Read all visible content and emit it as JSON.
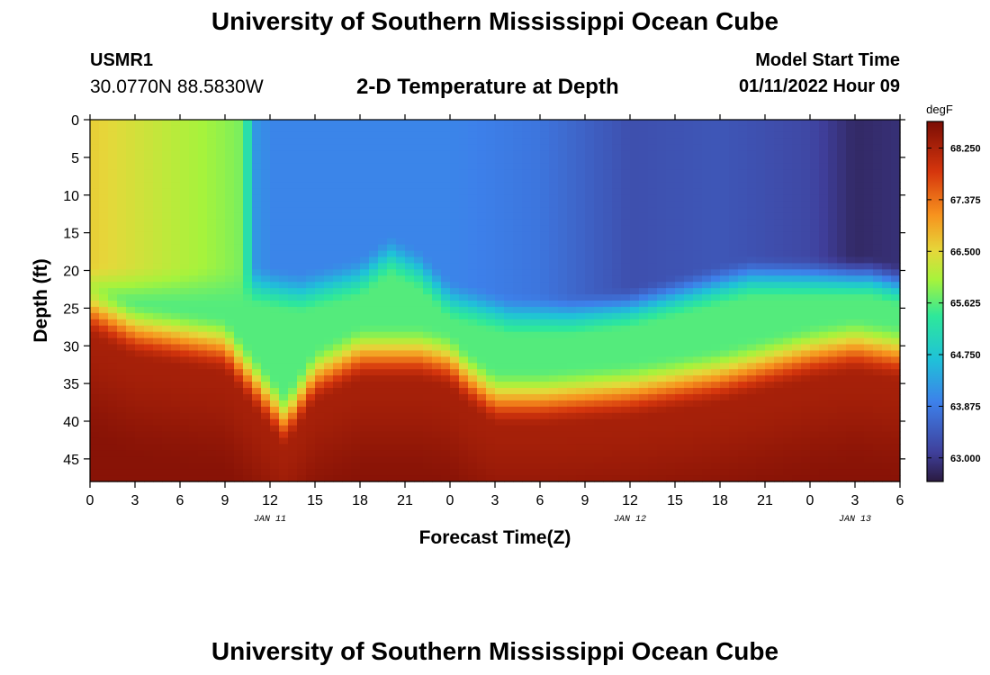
{
  "header": {
    "title": "University of Southern Mississippi Ocean Cube",
    "station_id": "USMR1",
    "coordinates": "30.0770N  88.5830W",
    "model_label": "Model Start Time",
    "model_start": "01/11/2022 Hour 09"
  },
  "footer": {
    "title": "University of Southern Mississippi Ocean Cube"
  },
  "chart_data": {
    "type": "heatmap",
    "title": "2-D Temperature at Depth",
    "xlabel": "Forecast Time(Z)",
    "ylabel": "Depth (ft)",
    "x_range_hours": [
      0,
      54
    ],
    "y_range_ft": [
      0,
      48
    ],
    "x_ticks": [
      {
        "hour": 0,
        "label": "0"
      },
      {
        "hour": 3,
        "label": "3"
      },
      {
        "hour": 6,
        "label": "6"
      },
      {
        "hour": 9,
        "label": "9"
      },
      {
        "hour": 12,
        "label": "12"
      },
      {
        "hour": 15,
        "label": "15"
      },
      {
        "hour": 18,
        "label": "18"
      },
      {
        "hour": 21,
        "label": "21"
      },
      {
        "hour": 24,
        "label": "0"
      },
      {
        "hour": 27,
        "label": "3"
      },
      {
        "hour": 30,
        "label": "6"
      },
      {
        "hour": 33,
        "label": "9"
      },
      {
        "hour": 36,
        "label": "12"
      },
      {
        "hour": 39,
        "label": "15"
      },
      {
        "hour": 42,
        "label": "18"
      },
      {
        "hour": 45,
        "label": "21"
      },
      {
        "hour": 48,
        "label": "0"
      },
      {
        "hour": 51,
        "label": "3"
      },
      {
        "hour": 54,
        "label": "6"
      }
    ],
    "date_labels": [
      {
        "hour": 12,
        "label": "JAN 11"
      },
      {
        "hour": 36,
        "label": "JAN 12"
      },
      {
        "hour": 51,
        "label": "JAN 13"
      }
    ],
    "y_ticks": [
      0,
      5,
      10,
      15,
      20,
      25,
      30,
      35,
      40,
      45
    ],
    "colorbar": {
      "unit": "degF",
      "range": [
        62.6,
        68.7
      ],
      "ticks": [
        "63.000",
        "63.875",
        "64.750",
        "65.625",
        "66.500",
        "67.375",
        "68.250"
      ]
    },
    "field": {
      "upper_layer_temps": {
        "hours": [
          0,
          9,
          10,
          10.6,
          11,
          12,
          18,
          21,
          24,
          30,
          36,
          42,
          48,
          51,
          54
        ],
        "degF": [
          66.6,
          65.9,
          65.8,
          65.1,
          64.2,
          64.0,
          64.0,
          64.0,
          64.0,
          63.8,
          63.3,
          63.4,
          63.2,
          62.8,
          62.9
        ]
      },
      "thermocline_depth_ft": {
        "hours": [
          0,
          4,
          8,
          10,
          11,
          14,
          16,
          18,
          20,
          22,
          24,
          28,
          32,
          36,
          40,
          44,
          48,
          52,
          54
        ],
        "depth": [
          22,
          22,
          22,
          22,
          22,
          23,
          22,
          21,
          18,
          20,
          24,
          26,
          26,
          25,
          23,
          21,
          21,
          21,
          22
        ]
      },
      "warm_layer_depth_ft": {
        "hours": [
          0,
          3,
          6,
          9,
          11,
          13,
          15,
          18,
          22,
          24,
          25,
          27,
          30,
          36,
          42,
          48,
          51,
          54
        ],
        "depth": [
          25,
          28,
          29,
          30,
          35,
          40,
          34,
          31,
          31,
          32,
          34,
          37,
          37,
          36,
          34,
          31,
          30,
          31
        ]
      },
      "mid_layer_degF": 65.6,
      "deep_degF": 68.3,
      "bottom_degF": 68.7
    }
  }
}
